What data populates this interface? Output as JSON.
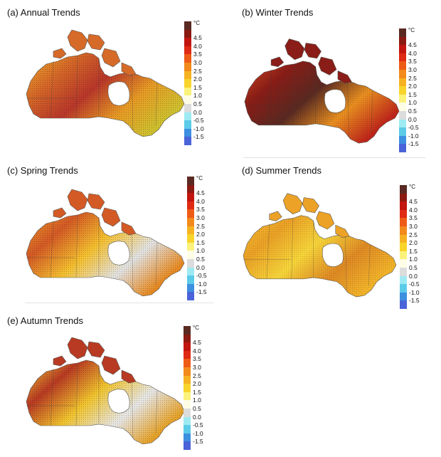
{
  "panels": [
    {
      "title": "(a)  Annual Trends"
    },
    {
      "title": "(b)  Winter Trends"
    },
    {
      "title": "(c)  Spring Trends"
    },
    {
      "title": "(d)  Summer Trends"
    },
    {
      "title": "(e)  Autumn Trends"
    }
  ],
  "legend": {
    "unit": "°C",
    "labels": [
      "4.5",
      "4.0",
      "3.5",
      "3.0",
      "2.5",
      "2.0",
      "1.5",
      "1.0",
      "0.5",
      "0.0",
      "-0.5",
      "-1.0",
      "-1.5"
    ],
    "colors": [
      "#5a2a22",
      "#8b1a12",
      "#c2150f",
      "#df2a14",
      "#ee5b16",
      "#f28a1c",
      "#f6b222",
      "#f8d42c",
      "#fbf27c",
      "#fdfde6",
      "#dcdcdc",
      "#9eeaf3",
      "#5ccbe8",
      "#3d8fe0",
      "#4a63d8"
    ]
  }
}
